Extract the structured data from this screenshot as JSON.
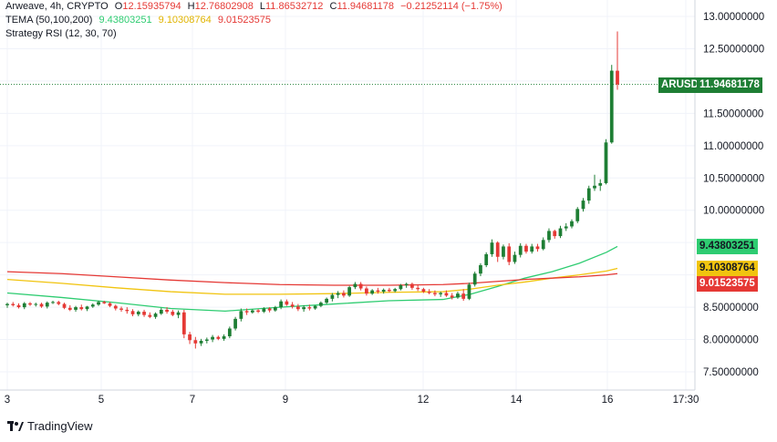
{
  "legend": {
    "line1": {
      "symbol": "Arweave, 4h, CRYPTO",
      "open_label": "O",
      "open": "12.15935794",
      "high_label": "H",
      "high": "12.76802908",
      "low_label": "L",
      "low": "11.86532712",
      "close_label": "C",
      "close": "11.94681178",
      "change": "−0.21252114 (−1.75%)"
    },
    "line2": {
      "name": "TEMA (50,100,200)",
      "v1": "9.43803251",
      "v2": "9.10308764",
      "v3": "9.01523575"
    },
    "line3": {
      "name": "Strategy RSI (12, 30, 70)"
    }
  },
  "price_tags": {
    "symbol": "ARUSD",
    "last": "11.94681178",
    "tema1": "9.43803251",
    "tema2": "9.10308764",
    "tema3": "9.01523575"
  },
  "brand": "TradingView",
  "colors": {
    "up": "#1e7e34",
    "down": "#e53935",
    "tema1": "#2ecc71",
    "tema2": "#f1c40f",
    "tema3": "#e53935",
    "last_line": "#1e7e34"
  },
  "chart_data": {
    "type": "candlestick",
    "x_ticks": [
      "3",
      "5",
      "7",
      "9",
      "12",
      "14",
      "16",
      "17:30"
    ],
    "y_ticks": [
      "13.00000000",
      "12.50000000",
      "11.50000000",
      "11.00000000",
      "10.50000000",
      "10.00000000",
      "8.50000000",
      "8.00000000",
      "7.50000000"
    ],
    "ylim": [
      7.2,
      13.1
    ],
    "x_range": [
      0,
      150
    ],
    "last_price": 11.94681178,
    "candles": [
      {
        "o": 8.53,
        "h": 8.57,
        "l": 8.49,
        "c": 8.55
      },
      {
        "o": 8.55,
        "h": 8.58,
        "l": 8.51,
        "c": 8.53
      },
      {
        "o": 8.53,
        "h": 8.56,
        "l": 8.48,
        "c": 8.5
      },
      {
        "o": 8.5,
        "h": 8.58,
        "l": 8.47,
        "c": 8.56
      },
      {
        "o": 8.56,
        "h": 8.58,
        "l": 8.52,
        "c": 8.54
      },
      {
        "o": 8.54,
        "h": 8.57,
        "l": 8.51,
        "c": 8.55
      },
      {
        "o": 8.55,
        "h": 8.57,
        "l": 8.49,
        "c": 8.51
      },
      {
        "o": 8.51,
        "h": 8.59,
        "l": 8.48,
        "c": 8.57
      },
      {
        "o": 8.57,
        "h": 8.6,
        "l": 8.55,
        "c": 8.58
      },
      {
        "o": 8.58,
        "h": 8.6,
        "l": 8.53,
        "c": 8.55
      },
      {
        "o": 8.55,
        "h": 8.57,
        "l": 8.47,
        "c": 8.49
      },
      {
        "o": 8.49,
        "h": 8.53,
        "l": 8.44,
        "c": 8.46
      },
      {
        "o": 8.46,
        "h": 8.52,
        "l": 8.43,
        "c": 8.5
      },
      {
        "o": 8.5,
        "h": 8.54,
        "l": 8.45,
        "c": 8.47
      },
      {
        "o": 8.47,
        "h": 8.52,
        "l": 8.44,
        "c": 8.51
      },
      {
        "o": 8.51,
        "h": 8.56,
        "l": 8.49,
        "c": 8.54
      },
      {
        "o": 8.54,
        "h": 8.6,
        "l": 8.52,
        "c": 8.58
      },
      {
        "o": 8.58,
        "h": 8.6,
        "l": 8.55,
        "c": 8.56
      },
      {
        "o": 8.56,
        "h": 8.58,
        "l": 8.5,
        "c": 8.52
      },
      {
        "o": 8.52,
        "h": 8.54,
        "l": 8.45,
        "c": 8.48
      },
      {
        "o": 8.48,
        "h": 8.51,
        "l": 8.43,
        "c": 8.46
      },
      {
        "o": 8.46,
        "h": 8.5,
        "l": 8.4,
        "c": 8.44
      },
      {
        "o": 8.44,
        "h": 8.47,
        "l": 8.36,
        "c": 8.39
      },
      {
        "o": 8.39,
        "h": 8.45,
        "l": 8.36,
        "c": 8.43
      },
      {
        "o": 8.43,
        "h": 8.46,
        "l": 8.35,
        "c": 8.38
      },
      {
        "o": 8.38,
        "h": 8.42,
        "l": 8.33,
        "c": 8.35
      },
      {
        "o": 8.35,
        "h": 8.42,
        "l": 8.32,
        "c": 8.4
      },
      {
        "o": 8.4,
        "h": 8.49,
        "l": 8.38,
        "c": 8.46
      },
      {
        "o": 8.46,
        "h": 8.5,
        "l": 8.4,
        "c": 8.43
      },
      {
        "o": 8.43,
        "h": 8.46,
        "l": 8.36,
        "c": 8.38
      },
      {
        "o": 8.38,
        "h": 8.45,
        "l": 8.33,
        "c": 8.42
      },
      {
        "o": 8.42,
        "h": 8.46,
        "l": 8.02,
        "c": 8.08
      },
      {
        "o": 8.08,
        "h": 8.12,
        "l": 7.93,
        "c": 7.99
      },
      {
        "o": 7.99,
        "h": 8.04,
        "l": 7.86,
        "c": 7.94
      },
      {
        "o": 7.94,
        "h": 8.01,
        "l": 7.9,
        "c": 7.98
      },
      {
        "o": 7.98,
        "h": 8.03,
        "l": 7.94,
        "c": 8.0
      },
      {
        "o": 8.0,
        "h": 8.07,
        "l": 7.96,
        "c": 8.04
      },
      {
        "o": 8.04,
        "h": 8.06,
        "l": 7.99,
        "c": 8.01
      },
      {
        "o": 8.01,
        "h": 8.08,
        "l": 7.98,
        "c": 8.05
      },
      {
        "o": 8.05,
        "h": 8.2,
        "l": 8.02,
        "c": 8.17
      },
      {
        "o": 8.17,
        "h": 8.35,
        "l": 8.14,
        "c": 8.32
      },
      {
        "o": 8.32,
        "h": 8.48,
        "l": 8.28,
        "c": 8.44
      },
      {
        "o": 8.44,
        "h": 8.48,
        "l": 8.38,
        "c": 8.42
      },
      {
        "o": 8.42,
        "h": 8.47,
        "l": 8.4,
        "c": 8.45
      },
      {
        "o": 8.45,
        "h": 8.47,
        "l": 8.41,
        "c": 8.43
      },
      {
        "o": 8.43,
        "h": 8.5,
        "l": 8.41,
        "c": 8.48
      },
      {
        "o": 8.48,
        "h": 8.5,
        "l": 8.42,
        "c": 8.45
      },
      {
        "o": 8.45,
        "h": 8.52,
        "l": 8.43,
        "c": 8.5
      },
      {
        "o": 8.5,
        "h": 8.62,
        "l": 8.47,
        "c": 8.59
      },
      {
        "o": 8.59,
        "h": 8.62,
        "l": 8.52,
        "c": 8.54
      },
      {
        "o": 8.54,
        "h": 8.58,
        "l": 8.48,
        "c": 8.51
      },
      {
        "o": 8.51,
        "h": 8.55,
        "l": 8.44,
        "c": 8.47
      },
      {
        "o": 8.47,
        "h": 8.53,
        "l": 8.43,
        "c": 8.5
      },
      {
        "o": 8.5,
        "h": 8.54,
        "l": 8.45,
        "c": 8.48
      },
      {
        "o": 8.48,
        "h": 8.53,
        "l": 8.46,
        "c": 8.52
      },
      {
        "o": 8.52,
        "h": 8.59,
        "l": 8.5,
        "c": 8.57
      },
      {
        "o": 8.57,
        "h": 8.65,
        "l": 8.55,
        "c": 8.63
      },
      {
        "o": 8.63,
        "h": 8.72,
        "l": 8.59,
        "c": 8.69
      },
      {
        "o": 8.69,
        "h": 8.75,
        "l": 8.64,
        "c": 8.72
      },
      {
        "o": 8.72,
        "h": 8.76,
        "l": 8.65,
        "c": 8.68
      },
      {
        "o": 8.68,
        "h": 8.83,
        "l": 8.66,
        "c": 8.81
      },
      {
        "o": 8.81,
        "h": 8.89,
        "l": 8.78,
        "c": 8.86
      },
      {
        "o": 8.86,
        "h": 8.89,
        "l": 8.76,
        "c": 8.79
      },
      {
        "o": 8.79,
        "h": 8.82,
        "l": 8.68,
        "c": 8.71
      },
      {
        "o": 8.71,
        "h": 8.78,
        "l": 8.69,
        "c": 8.76
      },
      {
        "o": 8.76,
        "h": 8.8,
        "l": 8.71,
        "c": 8.74
      },
      {
        "o": 8.74,
        "h": 8.79,
        "l": 8.71,
        "c": 8.77
      },
      {
        "o": 8.77,
        "h": 8.8,
        "l": 8.73,
        "c": 8.75
      },
      {
        "o": 8.75,
        "h": 8.8,
        "l": 8.73,
        "c": 8.78
      },
      {
        "o": 8.78,
        "h": 8.86,
        "l": 8.76,
        "c": 8.84
      },
      {
        "o": 8.84,
        "h": 8.88,
        "l": 8.8,
        "c": 8.86
      },
      {
        "o": 8.86,
        "h": 8.88,
        "l": 8.77,
        "c": 8.8
      },
      {
        "o": 8.8,
        "h": 8.84,
        "l": 8.75,
        "c": 8.78
      },
      {
        "o": 8.78,
        "h": 8.8,
        "l": 8.72,
        "c": 8.74
      },
      {
        "o": 8.74,
        "h": 8.78,
        "l": 8.7,
        "c": 8.72
      },
      {
        "o": 8.72,
        "h": 8.76,
        "l": 8.67,
        "c": 8.7
      },
      {
        "o": 8.7,
        "h": 8.74,
        "l": 8.66,
        "c": 8.72
      },
      {
        "o": 8.72,
        "h": 8.76,
        "l": 8.66,
        "c": 8.68
      },
      {
        "o": 8.68,
        "h": 8.72,
        "l": 8.62,
        "c": 8.65
      },
      {
        "o": 8.65,
        "h": 8.74,
        "l": 8.63,
        "c": 8.71
      },
      {
        "o": 8.71,
        "h": 8.78,
        "l": 8.6,
        "c": 8.63
      },
      {
        "o": 8.63,
        "h": 8.88,
        "l": 8.61,
        "c": 8.85
      },
      {
        "o": 8.85,
        "h": 9.05,
        "l": 8.82,
        "c": 9.02
      },
      {
        "o": 9.02,
        "h": 9.18,
        "l": 8.98,
        "c": 9.15
      },
      {
        "o": 9.15,
        "h": 9.35,
        "l": 9.12,
        "c": 9.32
      },
      {
        "o": 9.32,
        "h": 9.55,
        "l": 9.28,
        "c": 9.5
      },
      {
        "o": 9.5,
        "h": 9.52,
        "l": 9.2,
        "c": 9.28
      },
      {
        "o": 9.28,
        "h": 9.47,
        "l": 9.24,
        "c": 9.44
      },
      {
        "o": 9.44,
        "h": 9.49,
        "l": 9.15,
        "c": 9.2
      },
      {
        "o": 9.2,
        "h": 9.36,
        "l": 9.17,
        "c": 9.31
      },
      {
        "o": 9.31,
        "h": 9.49,
        "l": 9.27,
        "c": 9.45
      },
      {
        "o": 9.45,
        "h": 9.48,
        "l": 9.33,
        "c": 9.36
      },
      {
        "o": 9.36,
        "h": 9.48,
        "l": 9.33,
        "c": 9.44
      },
      {
        "o": 9.44,
        "h": 9.48,
        "l": 9.36,
        "c": 9.4
      },
      {
        "o": 9.4,
        "h": 9.58,
        "l": 9.38,
        "c": 9.54
      },
      {
        "o": 9.54,
        "h": 9.72,
        "l": 9.5,
        "c": 9.68
      },
      {
        "o": 9.68,
        "h": 9.7,
        "l": 9.56,
        "c": 9.6
      },
      {
        "o": 9.6,
        "h": 9.76,
        "l": 9.57,
        "c": 9.72
      },
      {
        "o": 9.72,
        "h": 9.8,
        "l": 9.68,
        "c": 9.75
      },
      {
        "o": 9.75,
        "h": 9.86,
        "l": 9.72,
        "c": 9.83
      },
      {
        "o": 9.83,
        "h": 10.05,
        "l": 9.8,
        "c": 10.02
      },
      {
        "o": 10.02,
        "h": 10.19,
        "l": 9.98,
        "c": 10.15
      },
      {
        "o": 10.15,
        "h": 10.38,
        "l": 10.1,
        "c": 10.34
      },
      {
        "o": 10.34,
        "h": 10.55,
        "l": 10.3,
        "c": 10.38
      },
      {
        "o": 10.38,
        "h": 10.48,
        "l": 10.3,
        "c": 10.42
      },
      {
        "o": 10.42,
        "h": 11.1,
        "l": 10.4,
        "c": 11.05
      },
      {
        "o": 11.05,
        "h": 12.25,
        "l": 11.03,
        "c": 12.16
      },
      {
        "o": 12.15935794,
        "h": 12.76802908,
        "l": 11.86532712,
        "c": 11.94681178
      }
    ],
    "series": [
      {
        "name": "TEMA (50,100,200)",
        "color": "#2ecc71",
        "x": [
          0,
          10,
          20,
          30,
          40,
          50,
          60,
          70,
          80,
          85,
          90,
          95,
          100,
          105,
          110,
          112
        ],
        "y": [
          8.72,
          8.65,
          8.57,
          8.48,
          8.44,
          8.5,
          8.55,
          8.6,
          8.62,
          8.7,
          8.82,
          8.95,
          9.05,
          9.18,
          9.35,
          9.44
        ]
      },
      {
        "name": "TEMA (50,100,200)",
        "color": "#f1c40f",
        "x": [
          0,
          10,
          20,
          30,
          40,
          50,
          60,
          70,
          80,
          85,
          90,
          95,
          100,
          105,
          110,
          112
        ],
        "y": [
          8.93,
          8.87,
          8.8,
          8.74,
          8.7,
          8.7,
          8.71,
          8.73,
          8.74,
          8.78,
          8.84,
          8.89,
          8.95,
          9.0,
          9.06,
          9.1
        ]
      },
      {
        "name": "TEMA (50,100,200)",
        "color": "#e53935",
        "x": [
          0,
          10,
          20,
          30,
          40,
          50,
          60,
          70,
          80,
          85,
          90,
          95,
          100,
          105,
          110,
          112
        ],
        "y": [
          9.05,
          9.02,
          8.97,
          8.92,
          8.88,
          8.85,
          8.84,
          8.84,
          8.85,
          8.87,
          8.9,
          8.93,
          8.95,
          8.97,
          9.0,
          9.02
        ]
      }
    ]
  }
}
